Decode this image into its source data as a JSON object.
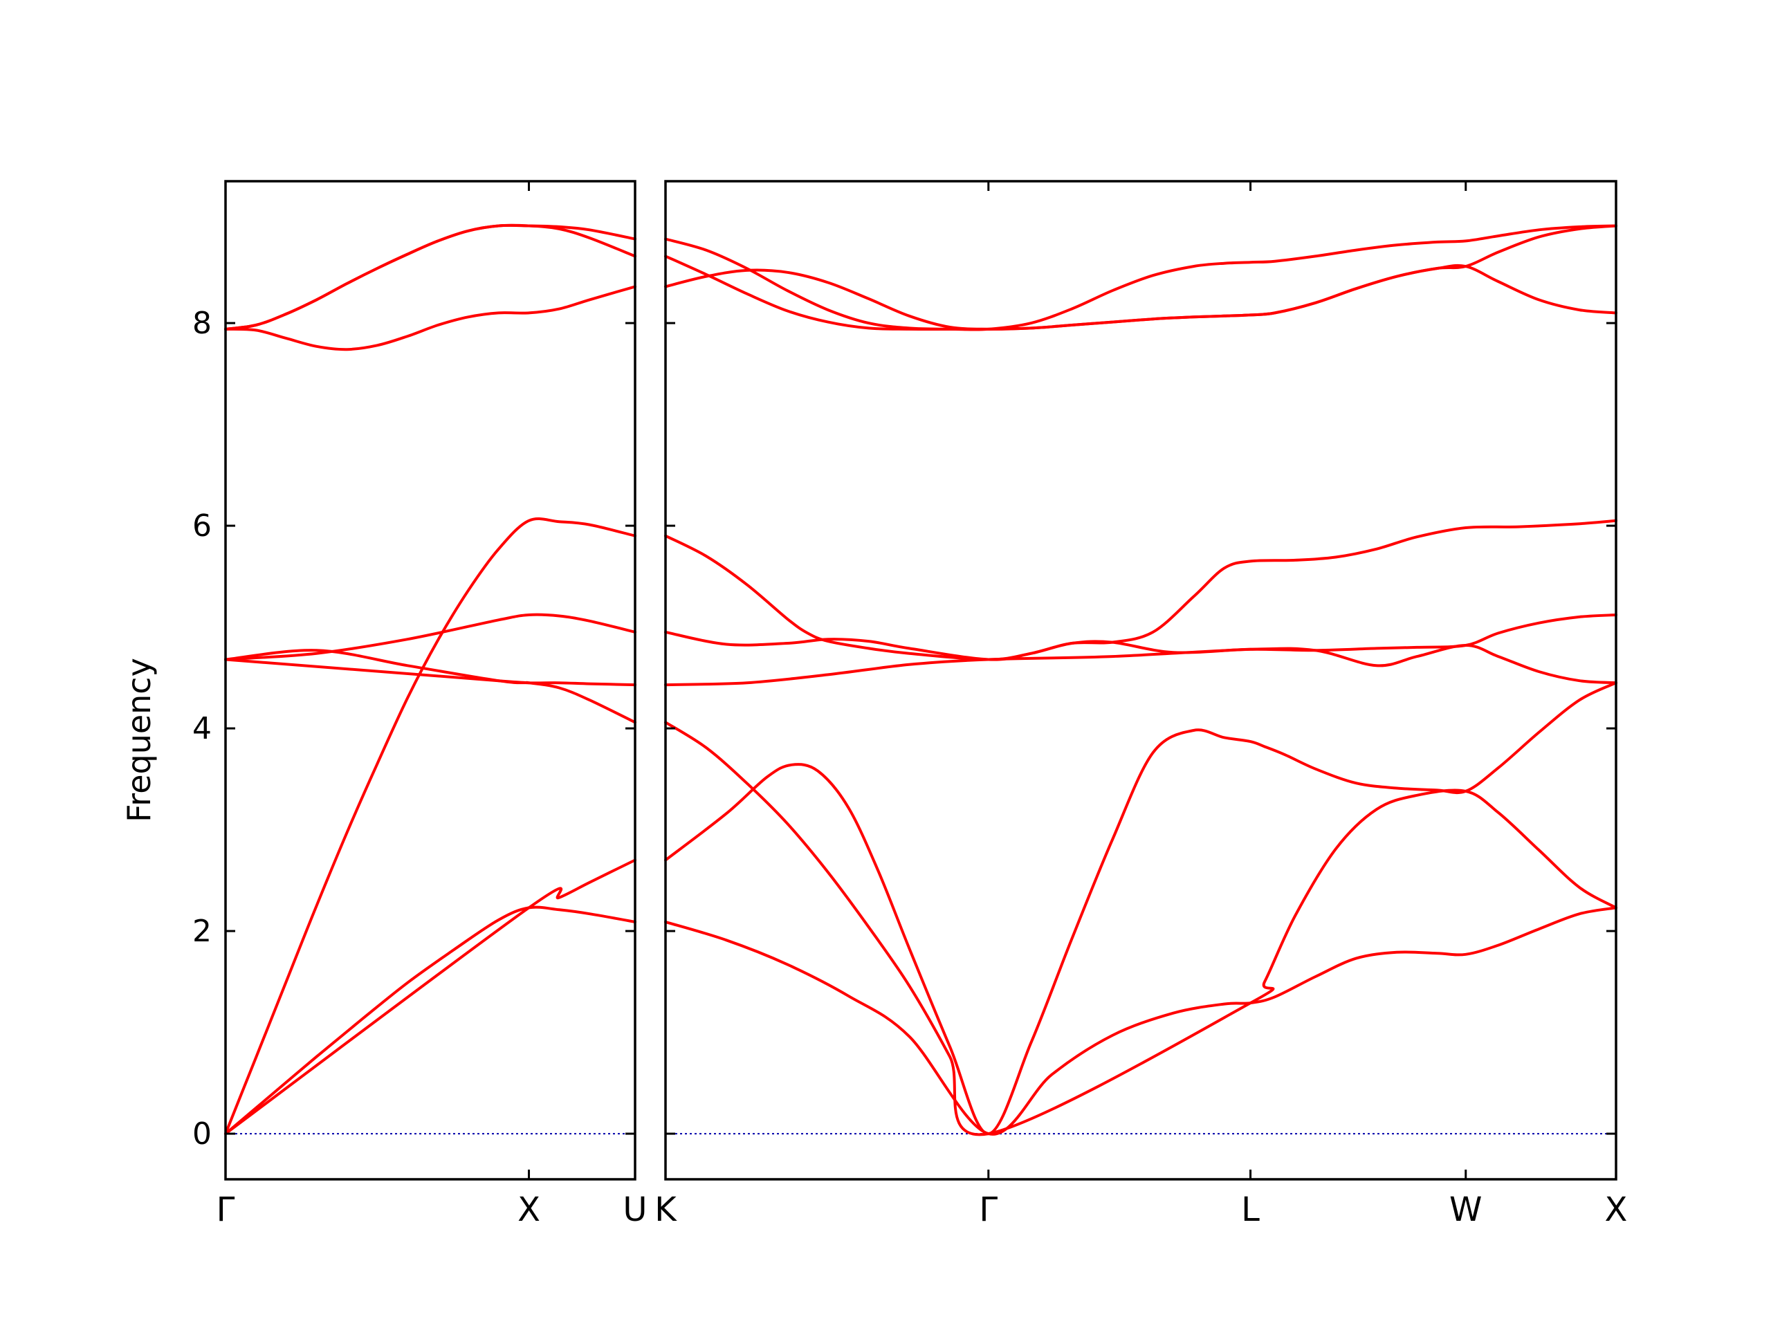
{
  "chart_data": {
    "type": "line",
    "title": "",
    "ylabel": "Frequency",
    "ylim": [
      -0.45,
      9.4
    ],
    "yticks": [
      0,
      2,
      4,
      6,
      8
    ],
    "colors": {
      "bands": "#ff0000",
      "zero_line": "#0000aa"
    },
    "grid": false,
    "legend": "none",
    "panels": [
      {
        "name": "panel-left",
        "xlim": [
          0,
          1.35
        ],
        "path_points": [
          {
            "label": "Γ",
            "x": 0
          },
          {
            "label": "X",
            "x": 1.0
          },
          {
            "label": "U",
            "x": 1.35
          }
        ],
        "series": [
          {
            "x": [
              0,
              0.15,
              0.3,
              0.45,
              0.6,
              0.75,
              0.9,
              1.0,
              1.1,
              1.2,
              1.35
            ],
            "y": [
              0,
              0.38,
              0.76,
              1.13,
              1.49,
              1.81,
              2.11,
              2.23,
              2.21,
              2.17,
              2.09
            ]
          },
          {
            "x": [
              0,
              0.1,
              0.2,
              0.3,
              0.4,
              0.5,
              0.6,
              0.7,
              0.8,
              0.9,
              1.0,
              1.1,
              1.2,
              1.35
            ],
            "y": [
              0,
              0.75,
              1.5,
              2.25,
              2.97,
              3.65,
              4.3,
              4.87,
              5.36,
              5.77,
              6.05,
              6.04,
              6.01,
              5.9
            ]
          },
          {
            "x": [
              0,
              0.3,
              0.6,
              0.9,
              1.0,
              1.1,
              1.2,
              1.35
            ],
            "y": [
              4.68,
              4.74,
              4.88,
              5.07,
              5.12,
              5.11,
              5.06,
              4.95
            ]
          },
          {
            "x": [
              0,
              0.3,
              0.6,
              0.9,
              1.0,
              1.1,
              1.2,
              1.35
            ],
            "y": [
              4.68,
              4.77,
              4.62,
              4.47,
              4.45,
              4.45,
              4.44,
              4.43
            ]
          },
          {
            "x": [
              0,
              0.9,
              1.0,
              1.1,
              1.2,
              1.35
            ],
            "y": [
              4.68,
              4.47,
              4.45,
              4.4,
              4.28,
              4.06
            ]
          },
          {
            "x": [
              0,
              1.0,
              1.1,
              1.2,
              1.35
            ],
            "y": [
              0,
              2.23,
              2.33,
              2.48,
              2.7
            ]
          },
          {
            "x": [
              0,
              0.1,
              0.2,
              0.3,
              0.4,
              0.5,
              0.6,
              0.7,
              0.8,
              0.9,
              1.0,
              1.1,
              1.2,
              1.35
            ],
            "y": [
              7.94,
              7.93,
              7.85,
              7.77,
              7.74,
              7.78,
              7.87,
              7.98,
              8.06,
              8.1,
              8.1,
              8.14,
              8.23,
              8.36
            ]
          },
          {
            "x": [
              0,
              0.1,
              0.2,
              0.3,
              0.4,
              0.5,
              0.6,
              0.7,
              0.8,
              0.9,
              1.0,
              1.1,
              1.2,
              1.35
            ],
            "y": [
              7.94,
              7.98,
              8.09,
              8.23,
              8.39,
              8.54,
              8.68,
              8.81,
              8.91,
              8.96,
              8.96,
              8.93,
              8.84,
              8.66
            ]
          },
          {
            "x": [
              0,
              0.1,
              0.2,
              0.3,
              0.4,
              0.5,
              0.6,
              0.7,
              0.8,
              0.9,
              1.0,
              1.1,
              1.2,
              1.35
            ],
            "y": [
              7.94,
              7.98,
              8.09,
              8.23,
              8.39,
              8.54,
              8.68,
              8.81,
              8.91,
              8.96,
              8.96,
              8.95,
              8.92,
              8.83
            ]
          }
        ]
      },
      {
        "name": "panel-right",
        "xlim": [
          0,
          4.68
        ],
        "path_points": [
          {
            "label": "K",
            "x": 0
          },
          {
            "label": "Γ",
            "x": 1.59
          },
          {
            "label": "L",
            "x": 2.88
          },
          {
            "label": "W",
            "x": 3.94
          },
          {
            "label": "X",
            "x": 4.68
          }
        ],
        "series": [
          {
            "x": [
              0,
              0.3,
              0.6,
              0.9,
              1.2,
              1.59,
              1.9,
              2.2,
              2.5,
              2.75,
              2.88,
              3.0,
              3.2,
              3.4,
              3.6,
              3.8,
              3.94,
              4.1,
              4.3,
              4.5,
              4.68
            ],
            "y": [
              2.09,
              1.91,
              1.67,
              1.36,
              0.96,
              0,
              0.58,
              0.97,
              1.19,
              1.28,
              1.29,
              1.35,
              1.55,
              1.73,
              1.79,
              1.78,
              1.77,
              1.86,
              2.02,
              2.17,
              2.23
            ]
          },
          {
            "x": [
              0,
              0.3,
              0.5,
              0.62,
              0.75,
              0.9,
              1.05,
              1.2,
              1.4,
              1.59,
              1.8,
              2.0,
              2.2,
              2.4,
              2.6,
              2.75,
              2.88,
              2.95,
              3.05,
              3.2,
              3.4,
              3.6,
              3.8,
              3.94,
              4.1,
              4.3,
              4.5,
              4.68
            ],
            "y": [
              2.7,
              3.16,
              3.52,
              3.64,
              3.58,
              3.22,
              2.58,
              1.83,
              0.86,
              0,
              0.9,
              1.92,
              2.9,
              3.76,
              3.98,
              3.91,
              3.87,
              3.82,
              3.74,
              3.6,
              3.46,
              3.41,
              3.39,
              3.38,
              3.61,
              3.96,
              4.28,
              4.45
            ]
          },
          {
            "x": [
              0,
              0.2,
              0.4,
              0.6,
              0.8,
              1.0,
              1.2,
              1.4,
              1.59,
              2.88,
              2.95,
              3.1,
              3.3,
              3.5,
              3.7,
              3.94,
              4.1,
              4.3,
              4.5,
              4.68
            ],
            "y": [
              4.06,
              3.81,
              3.46,
              3.06,
              2.58,
              2.04,
              1.46,
              0.76,
              0,
              1.29,
              1.5,
              2.15,
              2.81,
              3.2,
              3.34,
              3.38,
              3.17,
              2.8,
              2.43,
              2.23
            ]
          },
          {
            "x": [
              0,
              0.4,
              0.8,
              1.2,
              1.59,
              2.2,
              2.88,
              3.2,
              3.5,
              3.7,
              3.94,
              4.1,
              4.3,
              4.5,
              4.68
            ],
            "y": [
              4.43,
              4.45,
              4.53,
              4.63,
              4.68,
              4.71,
              4.78,
              4.77,
              4.62,
              4.71,
              4.82,
              4.71,
              4.56,
              4.47,
              4.45
            ]
          },
          {
            "x": [
              0,
              0.3,
              0.6,
              0.8,
              1.0,
              1.2,
              1.59,
              1.8,
              2.0,
              2.2,
              2.5,
              2.88,
              3.2,
              3.5,
              3.7,
              3.94,
              4.1,
              4.3,
              4.5,
              4.68
            ],
            "y": [
              4.95,
              4.83,
              4.84,
              4.88,
              4.86,
              4.79,
              4.68,
              4.74,
              4.84,
              4.85,
              4.75,
              4.78,
              4.77,
              4.79,
              4.8,
              4.82,
              4.94,
              5.04,
              5.1,
              5.12
            ]
          },
          {
            "x": [
              0,
              0.2,
              0.4,
              0.6,
              0.7,
              0.8,
              1.0,
              1.2,
              1.59,
              1.8,
              2.0,
              2.2,
              2.4,
              2.6,
              2.75,
              2.88,
              3.1,
              3.3,
              3.5,
              3.7,
              3.94,
              4.2,
              4.5,
              4.68
            ],
            "y": [
              5.9,
              5.7,
              5.42,
              5.08,
              4.94,
              4.86,
              4.79,
              4.74,
              4.68,
              4.74,
              4.84,
              4.85,
              4.95,
              5.3,
              5.58,
              5.65,
              5.66,
              5.69,
              5.77,
              5.89,
              5.98,
              5.99,
              6.02,
              6.05
            ]
          },
          {
            "x": [
              0,
              0.2,
              0.4,
              0.6,
              0.8,
              1.0,
              1.2,
              1.4,
              1.59,
              1.8,
              2.0,
              2.2,
              2.4,
              2.6,
              2.75,
              2.88,
              3.0,
              3.2,
              3.4,
              3.6,
              3.8,
              3.94,
              4.1,
              4.3,
              4.5,
              4.68
            ],
            "y": [
              8.36,
              8.46,
              8.52,
              8.5,
              8.4,
              8.24,
              8.07,
              7.96,
              7.94,
              7.95,
              7.98,
              8.01,
              8.04,
              8.06,
              8.07,
              8.08,
              8.1,
              8.2,
              8.34,
              8.46,
              8.54,
              8.56,
              8.41,
              8.23,
              8.13,
              8.1
            ]
          },
          {
            "x": [
              0,
              0.2,
              0.4,
              0.6,
              0.8,
              1.0,
              1.2,
              1.4,
              1.59,
              1.8,
              2.0,
              2.2,
              2.4,
              2.6,
              2.75,
              2.88,
              3.0,
              3.2,
              3.4,
              3.6,
              3.8,
              3.94,
              4.1,
              4.3,
              4.5,
              4.68
            ],
            "y": [
              8.66,
              8.48,
              8.29,
              8.12,
              8.01,
              7.95,
              7.94,
              7.94,
              7.94,
              8.0,
              8.14,
              8.32,
              8.47,
              8.56,
              8.59,
              8.6,
              8.61,
              8.66,
              8.72,
              8.77,
              8.8,
              8.81,
              8.86,
              8.92,
              8.95,
              8.96
            ]
          },
          {
            "x": [
              0,
              0.2,
              0.4,
              0.6,
              0.8,
              1.0,
              1.2,
              1.4,
              1.59,
              1.8,
              2.0,
              2.2,
              2.4,
              2.6,
              2.75,
              2.88,
              3.0,
              3.2,
              3.4,
              3.6,
              3.8,
              3.94,
              4.1,
              4.3,
              4.5,
              4.68
            ],
            "y": [
              8.83,
              8.72,
              8.54,
              8.32,
              8.13,
              8.0,
              7.95,
              7.94,
              7.94,
              7.95,
              7.98,
              8.01,
              8.04,
              8.06,
              8.07,
              8.08,
              8.1,
              8.2,
              8.34,
              8.46,
              8.54,
              8.56,
              8.7,
              8.85,
              8.93,
              8.96
            ]
          }
        ]
      }
    ]
  }
}
